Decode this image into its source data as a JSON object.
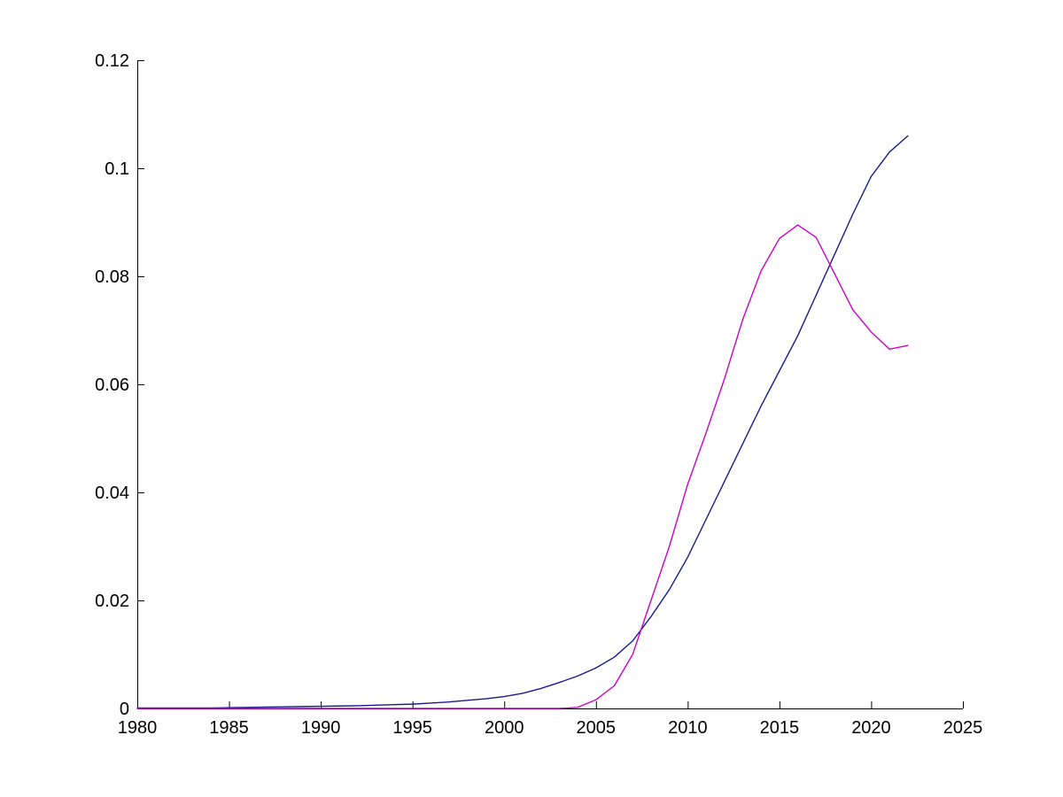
{
  "chart_data": {
    "type": "line",
    "title": "",
    "xlabel": "",
    "ylabel": "",
    "grid": false,
    "legend_position": "none",
    "background_color": "#ffffff",
    "axis_color": "#000000",
    "xlim": [
      1980,
      2025
    ],
    "ylim": [
      0,
      0.12
    ],
    "x_ticks": [
      1980,
      1985,
      1990,
      1995,
      2000,
      2005,
      2010,
      2015,
      2020,
      2025
    ],
    "x_tick_labels": [
      "1980",
      "1985",
      "1990",
      "1995",
      "2000",
      "2005",
      "2010",
      "2015",
      "2020",
      "2025"
    ],
    "y_ticks": [
      0,
      0.02,
      0.04,
      0.06,
      0.08,
      0.1,
      0.12
    ],
    "y_tick_labels": [
      "0",
      "0.02",
      "0.04",
      "0.06",
      "0.08",
      "0.1",
      "0.12"
    ],
    "x": [
      1980,
      1981,
      1982,
      1983,
      1984,
      1985,
      1986,
      1987,
      1988,
      1989,
      1990,
      1991,
      1992,
      1993,
      1994,
      1995,
      1996,
      1997,
      1998,
      1999,
      2000,
      2001,
      2002,
      2003,
      2004,
      2005,
      2006,
      2007,
      2008,
      2009,
      2010,
      2011,
      2012,
      2013,
      2014,
      2015,
      2016,
      2017,
      2018,
      2019,
      2020,
      2021,
      2022
    ],
    "series": [
      {
        "name": "dark-blue-line",
        "color": "#1b1b8e",
        "values": [
          0.0001,
          0.0001,
          0.0001,
          0.0001,
          0.0001,
          0.00015,
          0.0002,
          0.00025,
          0.0003,
          0.00035,
          0.0004,
          0.00045,
          0.0005,
          0.0006,
          0.0007,
          0.0008,
          0.001,
          0.0012,
          0.0015,
          0.0018,
          0.0022,
          0.0028,
          0.0037,
          0.0048,
          0.006,
          0.0075,
          0.0095,
          0.0125,
          0.017,
          0.022,
          0.028,
          0.035,
          0.042,
          0.049,
          0.056,
          0.0625,
          0.069,
          0.0765,
          0.084,
          0.0915,
          0.0985,
          0.103,
          0.106
        ]
      },
      {
        "name": "magenta-line",
        "color": "#cc00cc",
        "values": [
          0,
          0,
          0,
          0,
          0,
          0,
          0,
          0,
          0,
          0,
          0,
          0,
          0,
          0,
          0,
          0,
          0,
          0,
          0,
          0,
          0,
          0,
          0,
          0,
          0.0002,
          0.0016,
          0.0042,
          0.01,
          0.02,
          0.03,
          0.0415,
          0.051,
          0.061,
          0.072,
          0.081,
          0.087,
          0.0895,
          0.0872,
          0.0805,
          0.0738,
          0.0697,
          0.0665,
          0.0672
        ]
      }
    ]
  }
}
